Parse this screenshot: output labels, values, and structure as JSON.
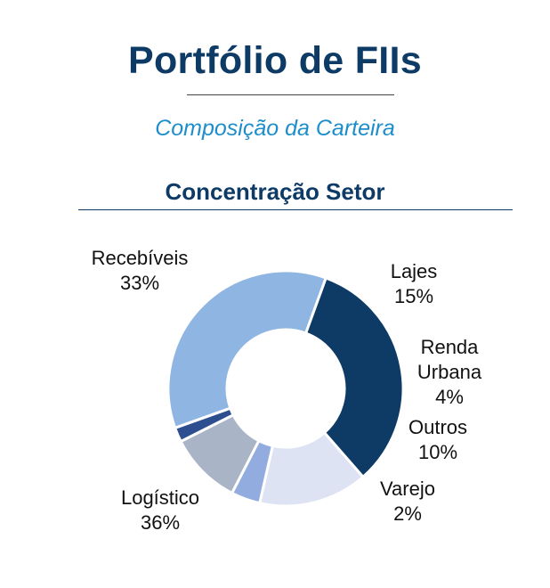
{
  "header": {
    "title": "Portfólio de FIIs",
    "subtitle": "Composição da Carteira",
    "section_title": "Concentração Setor"
  },
  "chart_data": {
    "type": "pie",
    "title": "Concentração Setor",
    "categories": [
      "Recebíveis",
      "Lajes",
      "Renda Urbana",
      "Outros",
      "Varejo",
      "Logístico"
    ],
    "values": [
      33,
      15,
      4,
      10,
      2,
      36
    ],
    "value_labels": [
      "33%",
      "15%",
      "4%",
      "10%",
      "2%",
      "36%"
    ],
    "label_lines": [
      [
        "Recebíveis",
        "33%"
      ],
      [
        "Lajes",
        "15%"
      ],
      [
        "Renda",
        "Urbana",
        "4%"
      ],
      [
        "Outros",
        "10%"
      ],
      [
        "Varejo",
        "2%"
      ],
      [
        "Logístico",
        "36%"
      ]
    ],
    "colors": [
      "#0d3b66",
      "#dde3f3",
      "#93ace0",
      "#a9b4c6",
      "#2e4f8f",
      "#8fb6e3"
    ],
    "donut": true,
    "legend": "none"
  }
}
